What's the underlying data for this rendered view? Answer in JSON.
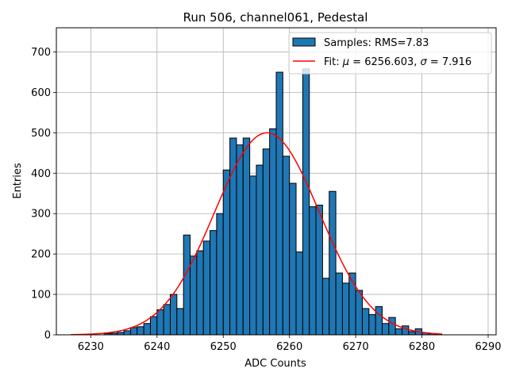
{
  "chart_data": {
    "type": "bar",
    "subtype": "histogram",
    "title": "Run 506, channel061, Pedestal",
    "xlabel": "ADC Counts",
    "ylabel": "Entries",
    "xlim": [
      6224.8,
      6291.2
    ],
    "ylim": [
      0,
      760
    ],
    "grid": true,
    "x_ticks": [
      6230,
      6240,
      6250,
      6260,
      6270,
      6280,
      6290
    ],
    "y_ticks": [
      0,
      100,
      200,
      300,
      400,
      500,
      600,
      700
    ],
    "bin_width": 1,
    "legend_position": "top-right",
    "series": [
      {
        "name": "Samples: RMS=7.83",
        "kind": "histogram",
        "color": "#1f77b4",
        "edgecolor": "#000000",
        "bin_starts": [
          6232,
          6233,
          6234,
          6235,
          6236,
          6237,
          6238,
          6239,
          6240,
          6241,
          6242,
          6243,
          6244,
          6245,
          6246,
          6247,
          6248,
          6249,
          6250,
          6251,
          6252,
          6253,
          6254,
          6255,
          6256,
          6257,
          6258,
          6259,
          6260,
          6261,
          6262,
          6263,
          6264,
          6265,
          6266,
          6267,
          6268,
          6269,
          6270,
          6271,
          6272,
          6273,
          6274,
          6275,
          6276,
          6277,
          6278,
          6279,
          6280,
          6281,
          6282
        ],
        "values": [
          3,
          4,
          6,
          10,
          18,
          20,
          28,
          45,
          62,
          75,
          100,
          65,
          247,
          195,
          208,
          232,
          258,
          300,
          408,
          487,
          470,
          487,
          393,
          420,
          460,
          510,
          650,
          442,
          375,
          205,
          658,
          317,
          321,
          140,
          355,
          153,
          128,
          153,
          110,
          65,
          50,
          70,
          28,
          43,
          15,
          22,
          8,
          15,
          5,
          3,
          2
        ]
      },
      {
        "name": "Fit: μ = 6256.603, σ = 7.916",
        "kind": "gaussian",
        "color": "#ff0000",
        "mu": 6256.603,
        "sigma": 7.916,
        "amplitude": 500,
        "x_range": [
          6227,
          6283
        ]
      }
    ]
  },
  "legend": {
    "entries": [
      {
        "prefix": "Samples: RMS=7.83",
        "color": "#1f77b4"
      },
      {
        "prefix": "Fit: ",
        "mu_symbol": "μ",
        "mu_text": " = 6256.603, ",
        "sigma_symbol": "σ",
        "sigma_text": " = 7.916",
        "color": "#ff0000"
      }
    ]
  }
}
